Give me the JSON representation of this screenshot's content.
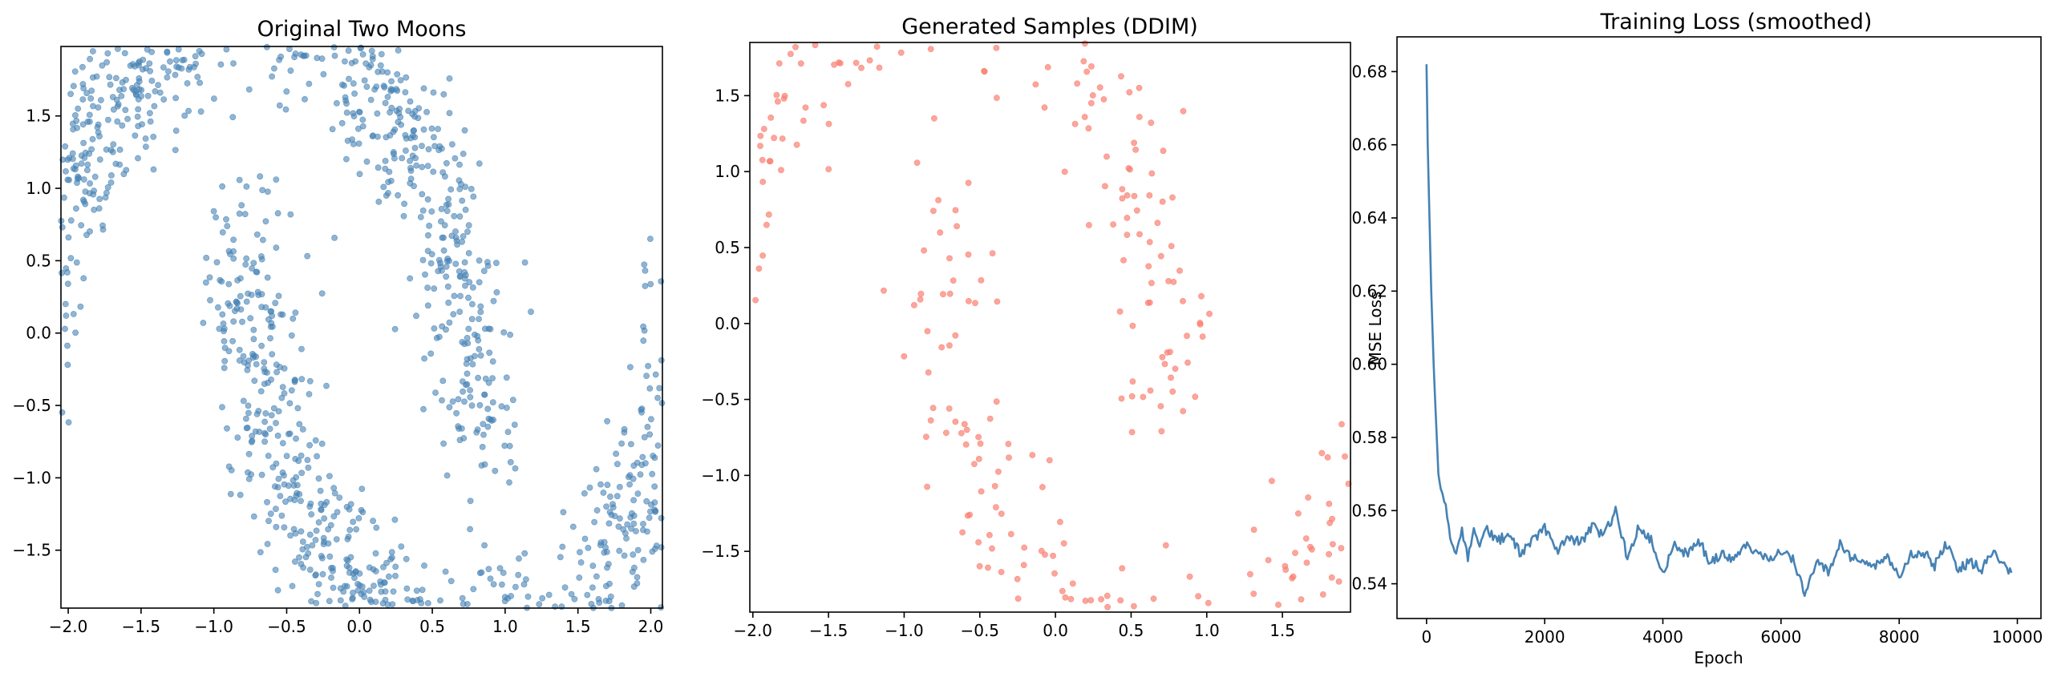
{
  "colors": {
    "original": "#4682B4",
    "generated": "#FA8072",
    "loss": "#4682B4"
  },
  "chart_data": [
    {
      "type": "scatter",
      "title": "Original Two Moons",
      "xlabel": "",
      "ylabel": "",
      "xlim": [
        -2.05,
        2.08
      ],
      "ylim": [
        -1.9,
        1.98
      ],
      "xticks": [
        -2.0,
        -1.5,
        -1.0,
        -0.5,
        0.0,
        0.5,
        1.0,
        1.5,
        2.0
      ],
      "xtick_labels": [
        "−2.0",
        "−1.5",
        "−1.0",
        "−0.5",
        "0.0",
        "0.5",
        "1.0",
        "1.5",
        "2.0"
      ],
      "yticks": [
        -1.5,
        -1.0,
        -0.5,
        0.0,
        0.5,
        1.0,
        1.5
      ],
      "ytick_labels": [
        "−1.5",
        "−1.0",
        "−0.5",
        "0.0",
        "0.5",
        "1.0",
        "1.5"
      ],
      "grid": false,
      "series": [
        {
          "color": "#4682B4",
          "alpha": 0.6,
          "n_points": 2000,
          "noise": 0.1,
          "x_range": [
            -1.9,
            1.9
          ],
          "y_range": [
            -1.72,
            1.82
          ],
          "points_sample": [
            [
              -1.7,
              -0.1
            ],
            [
              -1.5,
              0.6
            ],
            [
              -1.0,
              1.3
            ],
            [
              -0.5,
              1.55
            ],
            [
              0.0,
              1.35
            ],
            [
              0.3,
              0.9
            ],
            [
              0.5,
              0.2
            ],
            [
              0.5,
              -0.4
            ],
            [
              -0.6,
              0.5
            ],
            [
              -0.4,
              -0.6
            ],
            [
              0.0,
              -1.3
            ],
            [
              0.5,
              -1.55
            ],
            [
              1.0,
              -1.35
            ],
            [
              1.5,
              -0.6
            ],
            [
              1.7,
              0.2
            ]
          ]
        }
      ]
    },
    {
      "type": "scatter",
      "title": "Generated Samples (DDIM)",
      "xlabel": "",
      "ylabel": "",
      "xlim": [
        -2.02,
        1.95
      ],
      "ylim": [
        -1.9,
        1.85
      ],
      "xticks": [
        -2.0,
        -1.5,
        -1.0,
        -0.5,
        0.0,
        0.5,
        1.0,
        1.5
      ],
      "xtick_labels": [
        "−2.0",
        "−1.5",
        "−1.0",
        "−0.5",
        "0.0",
        "0.5",
        "1.0",
        "1.5"
      ],
      "yticks": [
        -1.5,
        -1.0,
        -0.5,
        0.0,
        0.5,
        1.0,
        1.5
      ],
      "ytick_labels": [
        "−1.5",
        "−1.0",
        "−0.5",
        "0.0",
        "0.5",
        "1.0",
        "1.5"
      ],
      "grid": false,
      "series": [
        {
          "color": "#FA8072",
          "alpha": 0.7,
          "n_points": 500,
          "noise": 0.1,
          "x_range": [
            -1.85,
            1.8
          ],
          "y_range": [
            -1.72,
            1.7
          ],
          "points_sample": [
            [
              -1.8,
              -0.4
            ],
            [
              -1.6,
              0.3
            ],
            [
              -1.3,
              1.0
            ],
            [
              -0.8,
              1.4
            ],
            [
              -0.3,
              1.45
            ],
            [
              0.1,
              1.1
            ],
            [
              0.4,
              0.5
            ],
            [
              0.6,
              -0.2
            ],
            [
              0.6,
              -0.5
            ],
            [
              -0.6,
              0.2
            ],
            [
              -0.3,
              -0.8
            ],
            [
              0.0,
              -1.3
            ],
            [
              0.4,
              -1.5
            ],
            [
              0.9,
              -1.3
            ],
            [
              1.4,
              -0.8
            ],
            [
              1.7,
              0.2
            ]
          ]
        }
      ]
    },
    {
      "type": "line",
      "title": "Training Loss (smoothed)",
      "xlabel": "Epoch",
      "ylabel": "MSE Loss",
      "xlim": [
        -500,
        10400
      ],
      "ylim": [
        0.5305,
        0.6895
      ],
      "xticks": [
        0,
        2000,
        4000,
        6000,
        8000,
        10000
      ],
      "xtick_labels": [
        "0",
        "2000",
        "4000",
        "6000",
        "8000",
        "10000"
      ],
      "yticks": [
        0.54,
        0.56,
        0.58,
        0.6,
        0.62,
        0.64,
        0.66,
        0.68
      ],
      "ytick_labels": [
        "0.54",
        "0.56",
        "0.58",
        "0.60",
        "0.62",
        "0.64",
        "0.66",
        "0.68"
      ],
      "grid": false,
      "series": [
        {
          "color": "#4682B4",
          "x": [
            0,
            20,
            50,
            80,
            120,
            160,
            200,
            240,
            300,
            400,
            500,
            600,
            700,
            800,
            900,
            1000,
            1200,
            1400,
            1600,
            1800,
            2000,
            2200,
            2400,
            2600,
            2800,
            3000,
            3200,
            3400,
            3600,
            3800,
            4000,
            4200,
            4400,
            4600,
            4800,
            5000,
            5200,
            5400,
            5600,
            5800,
            6000,
            6200,
            6400,
            6600,
            6800,
            7000,
            7200,
            7400,
            7600,
            7800,
            8000,
            8200,
            8400,
            8600,
            8800,
            9000,
            9200,
            9400,
            9600,
            9800,
            9900
          ],
          "y": [
            0.682,
            0.66,
            0.64,
            0.62,
            0.6,
            0.585,
            0.57,
            0.566,
            0.563,
            0.553,
            0.548,
            0.554,
            0.547,
            0.556,
            0.551,
            0.555,
            0.552,
            0.553,
            0.548,
            0.552,
            0.555,
            0.549,
            0.553,
            0.551,
            0.556,
            0.553,
            0.56,
            0.547,
            0.556,
            0.552,
            0.543,
            0.551,
            0.548,
            0.552,
            0.546,
            0.548,
            0.546,
            0.551,
            0.548,
            0.547,
            0.549,
            0.547,
            0.537,
            0.546,
            0.543,
            0.551,
            0.547,
            0.546,
            0.545,
            0.548,
            0.542,
            0.548,
            0.549,
            0.545,
            0.551,
            0.544,
            0.546,
            0.544,
            0.549,
            0.544,
            0.543
          ]
        }
      ]
    }
  ]
}
